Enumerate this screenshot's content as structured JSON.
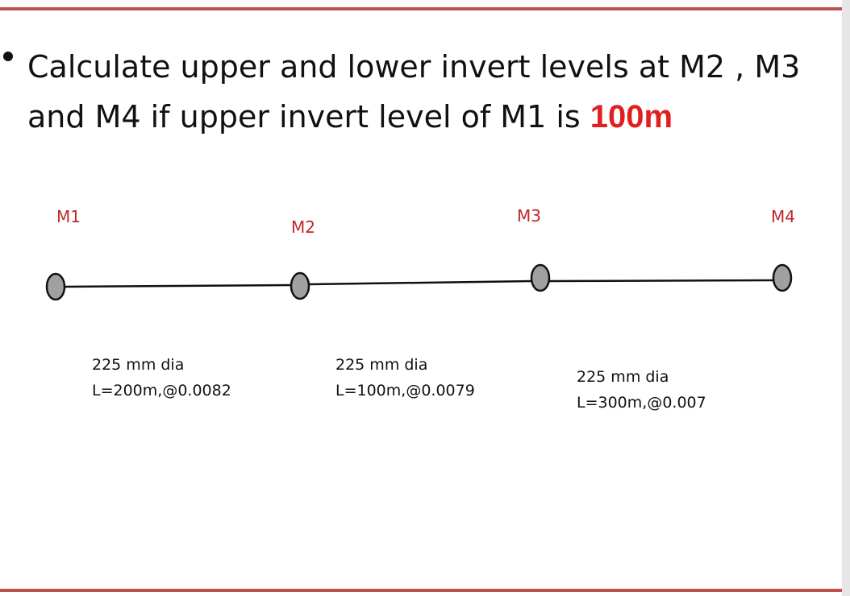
{
  "colors": {
    "rule": "#c0504d",
    "accent": "#e02020",
    "manhole_fill": "#a0a0a0",
    "manhole_stroke": "#111111",
    "pipe": "#111111",
    "label": "#c0292b"
  },
  "question": {
    "line1": "Calculate upper and lower invert levels  at M2 , M3",
    "line2_prefix": "and M4  if upper invert level of M1 is ",
    "highlight": "100m"
  },
  "manholes": [
    {
      "label": "M1"
    },
    {
      "label": "M2"
    },
    {
      "label": "M3"
    },
    {
      "label": "M4"
    }
  ],
  "pipes": [
    {
      "dia": "225 mm dia",
      "spec": "L=200m,@0.0082"
    },
    {
      "dia": "225 mm dia",
      "spec": "L=100m,@0.0079"
    },
    {
      "dia": "225 mm dia",
      "spec": "L=300m,@0.007"
    }
  ]
}
